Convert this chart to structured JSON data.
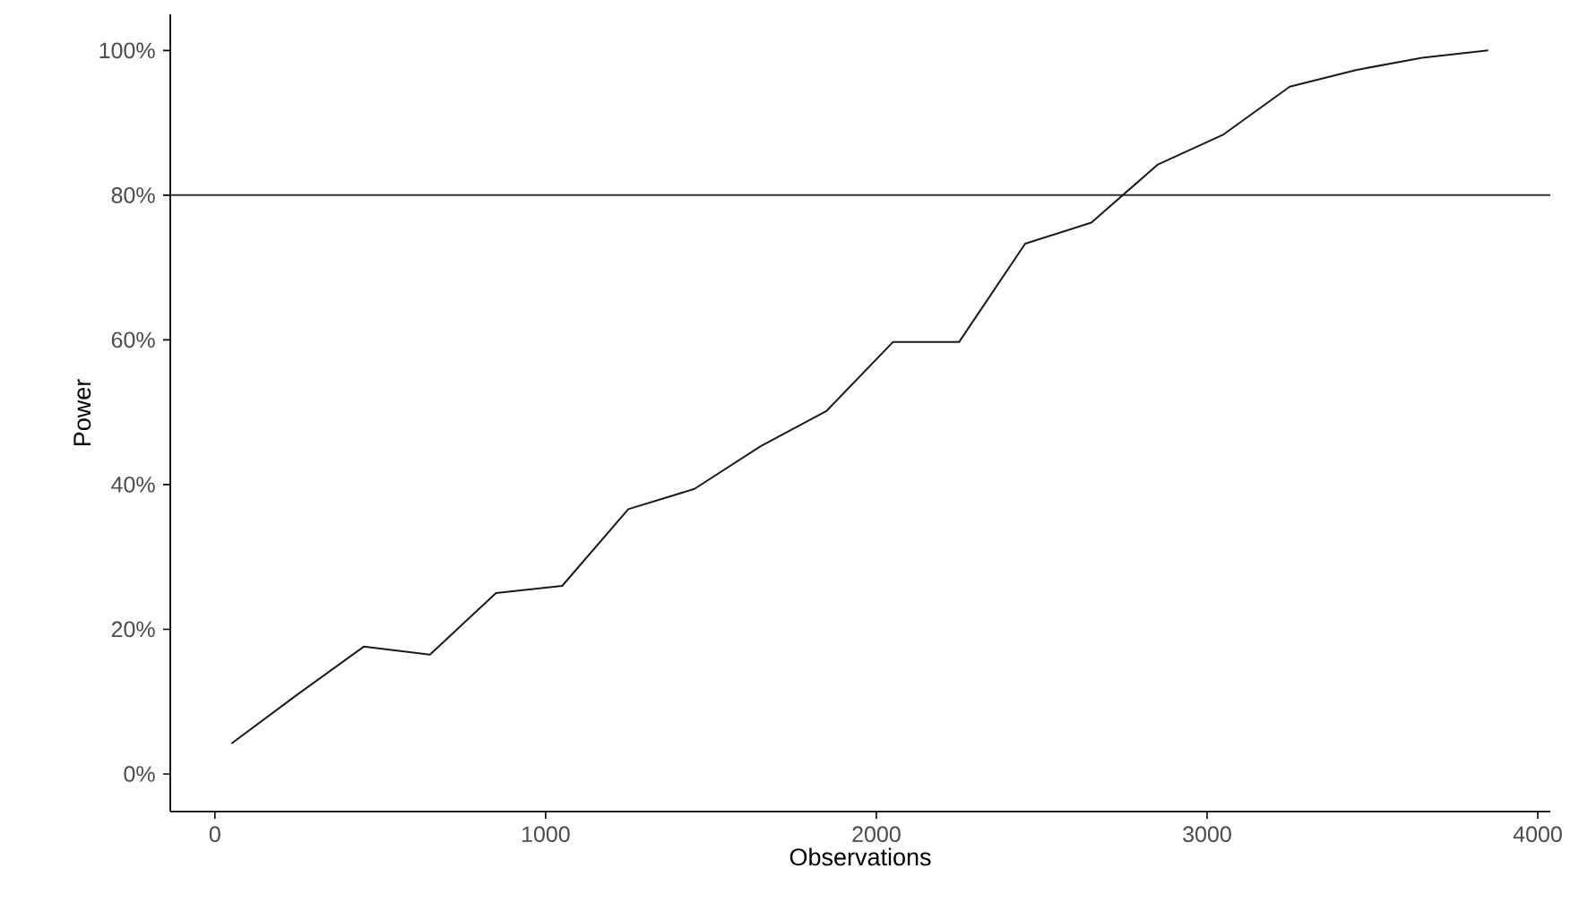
{
  "chart_data": {
    "type": "line",
    "xlabel": "Observations",
    "ylabel": "Power",
    "x": [
      50,
      250,
      450,
      650,
      850,
      1050,
      1250,
      1450,
      1650,
      1850,
      2050,
      2250,
      2450,
      2650,
      2850,
      3050,
      3250,
      3450,
      3650,
      3850
    ],
    "series": [
      {
        "color": "#1a1a1a",
        "values": [
          4.2,
          11,
          17.6,
          16.5,
          25,
          26,
          36.6,
          39.4,
          45.3,
          50.2,
          59.7,
          59.7,
          73.3,
          76.2,
          84.2,
          88.4,
          95,
          97.3,
          99,
          100
        ]
      }
    ],
    "xlim": [
      -135,
      4038
    ],
    "xticks": [
      0,
      1000,
      2000,
      3000,
      4000
    ],
    "ylim": [
      -5.2,
      105
    ],
    "yticks": [
      {
        "value": 0,
        "label": "0%"
      },
      {
        "value": 20,
        "label": "20%"
      },
      {
        "value": 40,
        "label": "40%"
      },
      {
        "value": 60,
        "label": "60%"
      },
      {
        "value": 80,
        "label": "80%"
      },
      {
        "value": 100,
        "label": "100%"
      }
    ],
    "ref_lines": [
      {
        "axis": "y",
        "value": 80,
        "color": "#333333"
      }
    ]
  }
}
